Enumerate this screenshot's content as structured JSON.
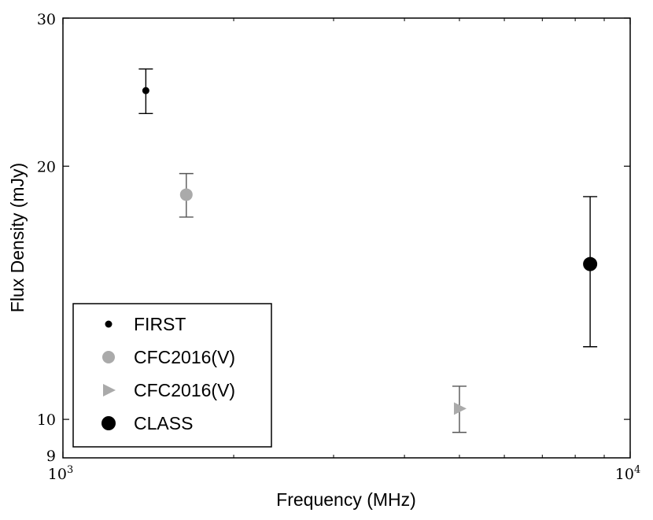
{
  "chart_data": {
    "type": "scatter",
    "title": "",
    "xlabel": "Frequency (MHz)",
    "ylabel": "Flux Density (mJy)",
    "xscale": "log",
    "yscale": "log",
    "xlim": [
      1000,
      10000
    ],
    "ylim": [
      9,
      30
    ],
    "x_major_ticks": [
      {
        "value": 1000,
        "base": "10",
        "exp": "3"
      },
      {
        "value": 10000,
        "base": "10",
        "exp": "4"
      }
    ],
    "x_minor_ticks": [
      2000,
      3000,
      4000,
      5000,
      6000,
      7000,
      8000,
      9000
    ],
    "y_ticks": [
      {
        "value": 9,
        "label": "9"
      },
      {
        "value": 10,
        "label": "10"
      },
      {
        "value": 20,
        "label": "20"
      },
      {
        "value": 30,
        "label": "30"
      }
    ],
    "legend_position": "lower-left",
    "series": [
      {
        "name": "FIRST",
        "marker": "circle-small",
        "color": "#000000",
        "points": [
          {
            "x": 1400,
            "y": 24.6,
            "yerr": 1.5
          }
        ]
      },
      {
        "name": "CFC2016(V)",
        "marker": "circle",
        "color": "#aaaaaa",
        "points": [
          {
            "x": 1650,
            "y": 18.5,
            "yerr": 1.1
          }
        ]
      },
      {
        "name": "CFC2016(V)",
        "marker": "triangle-right",
        "color": "#aaaaaa",
        "points": [
          {
            "x": 5000,
            "y": 10.3,
            "yerr": 0.65
          }
        ]
      },
      {
        "name": "CLASS",
        "marker": "circle-large",
        "color": "#000000",
        "points": [
          {
            "x": 8500,
            "y": 15.3,
            "yerr": 3.1
          }
        ]
      }
    ]
  }
}
